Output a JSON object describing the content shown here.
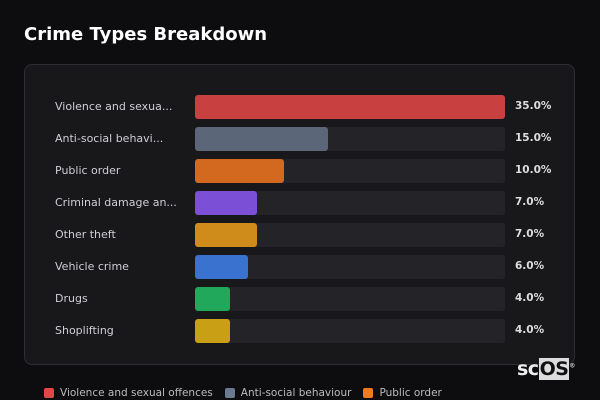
{
  "title": "Crime Types Breakdown",
  "chart_data": {
    "type": "bar",
    "orientation": "horizontal",
    "categories": [
      "Violence and sexua...",
      "Anti-social behavi...",
      "Public order",
      "Criminal damage an...",
      "Other theft",
      "Vehicle crime",
      "Drugs",
      "Shoplifting"
    ],
    "values": [
      35.0,
      15.0,
      10.0,
      7.0,
      7.0,
      6.0,
      4.0,
      4.0
    ],
    "value_labels": [
      "35.0%",
      "15.0%",
      "10.0%",
      "7.0%",
      "7.0%",
      "6.0%",
      "4.0%",
      "4.0%"
    ],
    "colors": [
      "#c94040",
      "#5b6779",
      "#d2691e",
      "#7b4fd6",
      "#d08c1a",
      "#3a72d0",
      "#22a85a",
      "#c9a015"
    ],
    "xlim": [
      0,
      35
    ],
    "grid": false,
    "legend_position": "bottom"
  },
  "legend": [
    {
      "label": "Violence and sexual offences",
      "color": "#e04848"
    },
    {
      "label": "Anti-social behaviour",
      "color": "#6b7a90"
    },
    {
      "label": "Public order",
      "color": "#f07a20"
    }
  ],
  "logo": {
    "text_a": "sc",
    "text_b": "OS",
    "mark": "®"
  }
}
